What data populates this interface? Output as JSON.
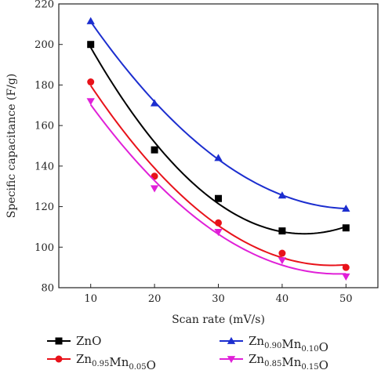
{
  "chart_data": {
    "type": "scatter",
    "xlabel": "Scan rate (mV/s)",
    "ylabel": "Specific capacitance (F/g)",
    "xlim": [
      5,
      55
    ],
    "ylim": [
      80,
      220
    ],
    "x_ticks": [
      10,
      20,
      30,
      40,
      50
    ],
    "y_ticks": [
      80,
      100,
      120,
      140,
      160,
      180,
      200,
      220
    ],
    "x": [
      10,
      20,
      30,
      40,
      50
    ],
    "fit_lines": true,
    "legend_position": "bottom",
    "series": [
      {
        "name": "ZnO",
        "parts": [
          {
            "t": "ZnO",
            "sub": ""
          }
        ],
        "values": [
          200,
          148,
          124,
          108,
          109.5
        ],
        "color": "#000000",
        "marker": "square"
      },
      {
        "name": "Zn0.95Mn0.05O",
        "parts": [
          {
            "t": "Zn",
            "sub": "0.95"
          },
          {
            "t": "Mn",
            "sub": "0.05"
          },
          {
            "t": "O",
            "sub": ""
          }
        ],
        "values": [
          181.5,
          135,
          112,
          97,
          90
        ],
        "color": "#e8121a",
        "marker": "circle"
      },
      {
        "name": "Zn0.90Mn0.10O",
        "parts": [
          {
            "t": "Zn",
            "sub": "0.90"
          },
          {
            "t": "Mn",
            "sub": "0.10"
          },
          {
            "t": "O",
            "sub": ""
          }
        ],
        "values": [
          211.5,
          171,
          144,
          125.5,
          119
        ],
        "color": "#1c2ecf",
        "marker": "triangle-up"
      },
      {
        "name": "Zn0.85Mn0.15O",
        "parts": [
          {
            "t": "Zn",
            "sub": "0.85"
          },
          {
            "t": "Mn",
            "sub": "0.15"
          },
          {
            "t": "O",
            "sub": ""
          }
        ],
        "values": [
          172,
          129,
          107.5,
          93.5,
          85.5
        ],
        "color": "#e020d8",
        "marker": "triangle-down"
      }
    ]
  }
}
